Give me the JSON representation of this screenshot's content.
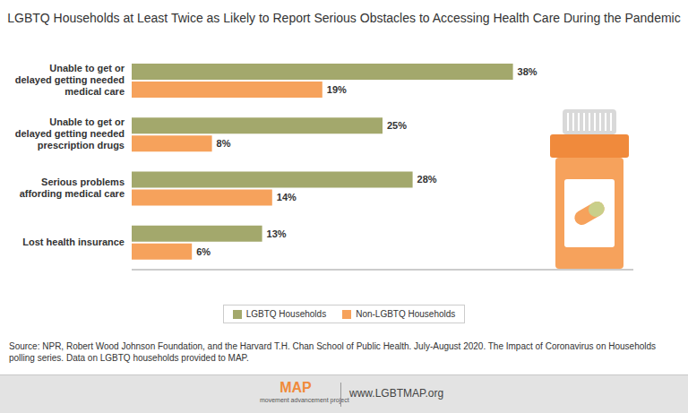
{
  "chart_data": {
    "type": "bar",
    "orientation": "horizontal",
    "title": "LGBTQ Households at Least Twice as Likely to Report Serious Obstacles to Accessing Health Care During the Pandemic",
    "categories": [
      "Unable to get or delayed getting needed medical care",
      "Unable to get or delayed getting needed prescription drugs",
      "Serious problems affording medical care",
      "Lost health insurance"
    ],
    "series": [
      {
        "name": "LGBTQ Households",
        "color": "#a3a86c",
        "values": [
          38,
          25,
          28,
          13
        ],
        "value_labels": [
          "38%",
          "25%",
          "28%",
          "13%"
        ]
      },
      {
        "name": "Non-LGBTQ Households",
        "color": "#f6a25c",
        "values": [
          19,
          8,
          14,
          6
        ],
        "value_labels": [
          "19%",
          "8%",
          "14%",
          "6%"
        ]
      }
    ],
    "xlim": [
      0,
      50
    ],
    "data_labels": true,
    "tick_labels": "y",
    "legend": "bottom",
    "grid": false
  },
  "source": "Source: NPR, Robert Wood Johnson Foundation, and the Harvard T.H. Chan School of Public Health. July-August 2020. The Impact of Coronavirus on Households polling series. Data on LGBTQ households provided to MAP.",
  "footer": {
    "logo": "MAP",
    "logo_subtitle": "movement advancement project",
    "url": "www.LGBTMAP.org"
  }
}
